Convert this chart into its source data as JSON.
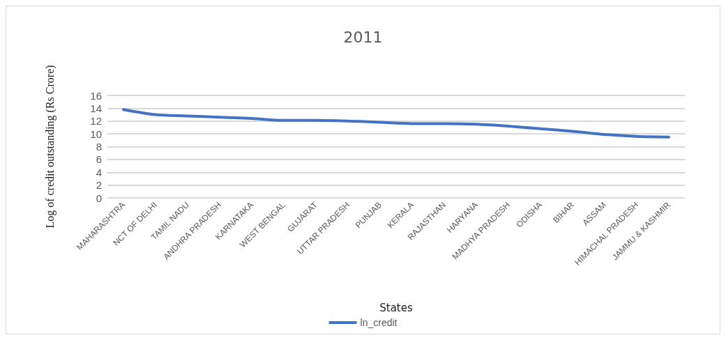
{
  "chart_data": {
    "type": "line",
    "title": "2011",
    "xlabel": "States",
    "ylabel": "Log of credit outstanding (Rs Crore)",
    "categories": [
      "MAHARASHTRA",
      "NCT OF DELHI",
      "TAMIL NADU",
      "ANDHRA PRADESH",
      "KARNATAKA",
      "WEST BENGAL",
      "GUJARAT",
      "UTTAR PRADESH",
      "PUNJAB",
      "KERALA",
      "RAJASTHAN",
      "HARYANA",
      "MADHYA PRADESH",
      "ODISHA",
      "BIHAR",
      "ASSAM",
      "HIMACHAL PRADESH",
      "JAMMU & KASHMIR"
    ],
    "series": [
      {
        "name": "ln_credit",
        "color": "#4472c4",
        "values": [
          13.8,
          13.0,
          12.8,
          12.6,
          12.4,
          12.1,
          12.1,
          12.0,
          11.8,
          11.6,
          11.6,
          11.5,
          11.2,
          10.8,
          10.4,
          9.9,
          9.6,
          9.5
        ]
      }
    ],
    "ylim": [
      0,
      16
    ],
    "yticks": [
      0,
      2,
      4,
      6,
      8,
      10,
      12,
      14,
      16
    ],
    "grid": "y",
    "legend": "bottom",
    "marker": "none",
    "line_style": "solid"
  }
}
